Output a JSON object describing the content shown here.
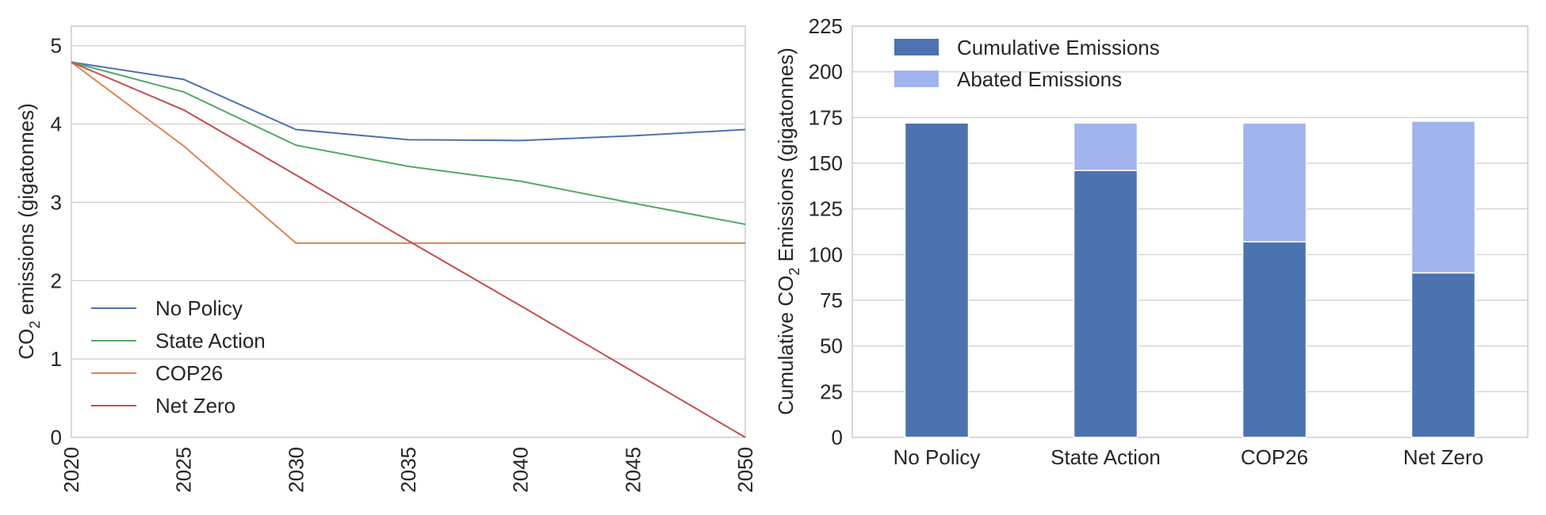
{
  "chart_data": [
    {
      "type": "line",
      "title": "",
      "xlabel": "",
      "ylabel_prefix": "CO",
      "ylabel_sub": "2",
      "ylabel_suffix": " emissions (gigatonnes)",
      "x": [
        2020,
        2025,
        2030,
        2035,
        2040,
        2045,
        2050
      ],
      "xlim": [
        2020,
        2050
      ],
      "ylim": [
        0,
        5.25
      ],
      "xticks": [
        2020,
        2025,
        2030,
        2035,
        2040,
        2045,
        2050
      ],
      "yticks": [
        0,
        1,
        2,
        3,
        4,
        5
      ],
      "grid": true,
      "legend_position": "lower-left",
      "series": [
        {
          "name": "No Policy",
          "color": "#4c72b0",
          "values": [
            4.79,
            4.57,
            3.93,
            3.8,
            3.79,
            3.85,
            3.93
          ]
        },
        {
          "name": "State Action",
          "color": "#55a868",
          "values": [
            4.79,
            4.41,
            3.73,
            3.46,
            3.27,
            2.99,
            2.72
          ]
        },
        {
          "name": "COP26",
          "color": "#dd8452",
          "values": [
            4.79,
            3.72,
            2.48,
            2.48,
            2.48,
            2.48,
            2.48
          ]
        },
        {
          "name": "Net Zero",
          "color": "#c44e52",
          "values": [
            4.79,
            4.18,
            3.35,
            2.51,
            1.68,
            0.84,
            0.0
          ]
        }
      ]
    },
    {
      "type": "bar",
      "stacked": true,
      "title": "",
      "xlabel": "",
      "ylabel_prefix": "Cumulative CO",
      "ylabel_sub": "2",
      "ylabel_suffix": " Emissions (gigatonnes)",
      "categories": [
        "No Policy",
        "State Action",
        "COP26",
        "Net Zero"
      ],
      "ylim": [
        0,
        225
      ],
      "yticks": [
        0,
        25,
        50,
        75,
        100,
        125,
        150,
        175,
        200,
        225
      ],
      "grid": true,
      "legend_position": "top-left",
      "series": [
        {
          "name": "Cumulative Emissions",
          "color": "#4c72b0",
          "values": [
            172,
            146,
            107,
            90
          ]
        },
        {
          "name": "Abated Emissions",
          "color": "#a1b4ee",
          "values": [
            0,
            26,
            65,
            83
          ]
        }
      ]
    }
  ]
}
